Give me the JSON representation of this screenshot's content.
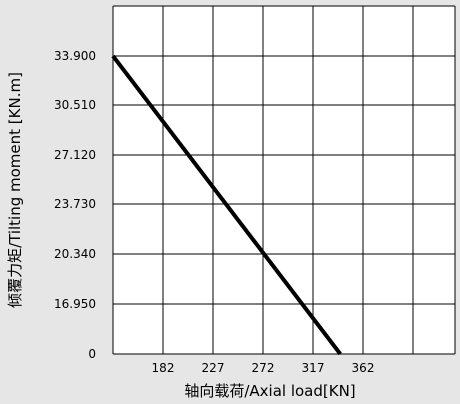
{
  "chart_data": {
    "type": "line",
    "xlabel": "轴向载荷/Axial load[KN]",
    "ylabel": "倾覆力矩/Tilting moment [KN.m]",
    "x_ticks": [
      "182",
      "227",
      "272",
      "317",
      "362"
    ],
    "y_ticks": [
      "0",
      "16.950",
      "20.340",
      "23.730",
      "27.120",
      "30.510",
      "33.900"
    ],
    "grid": true,
    "series": [
      {
        "color": "#000000",
        "points": [
          {
            "x": 137,
            "y": 33.9
          },
          {
            "x": 341.6,
            "y": 0
          }
        ]
      }
    ]
  },
  "colors": {
    "background": "#e6e6e6",
    "plot_area": "#ffffff",
    "grid": "#000000",
    "line": "#000000"
  }
}
